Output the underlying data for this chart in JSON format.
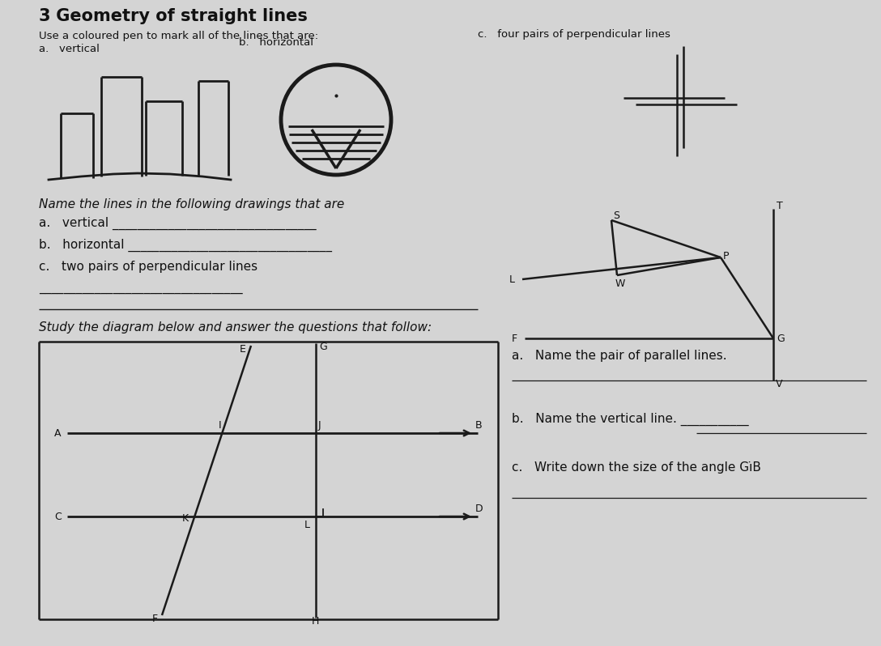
{
  "bg_color": "#d4d4d4",
  "title_num": "3",
  "title_text": " Geometry of straight lines",
  "instr": "Use a coloured pen to mark all of the lines that are:",
  "lbl_a": "a.   vertical",
  "lbl_b": "b.   horizontal",
  "lbl_c": "c.   four pairs of perpendicular lines",
  "sec2_title": "Name the lines in the following drawings that are",
  "sec2_a": "a.   vertical _________________________________",
  "sec2_b": "b.   horizontal _________________________________",
  "sec2_c": "c.   two pairs of perpendicular lines",
  "sec2_line": "_________________________________",
  "study": "Study the diagram below and answer the questions that follow:",
  "qa_a": "a.   Name the pair of parallel lines.",
  "qa_b": "b.   Name the vertical line. ___________",
  "qa_c": "c.   Write down the size of the angle Gı̇B"
}
